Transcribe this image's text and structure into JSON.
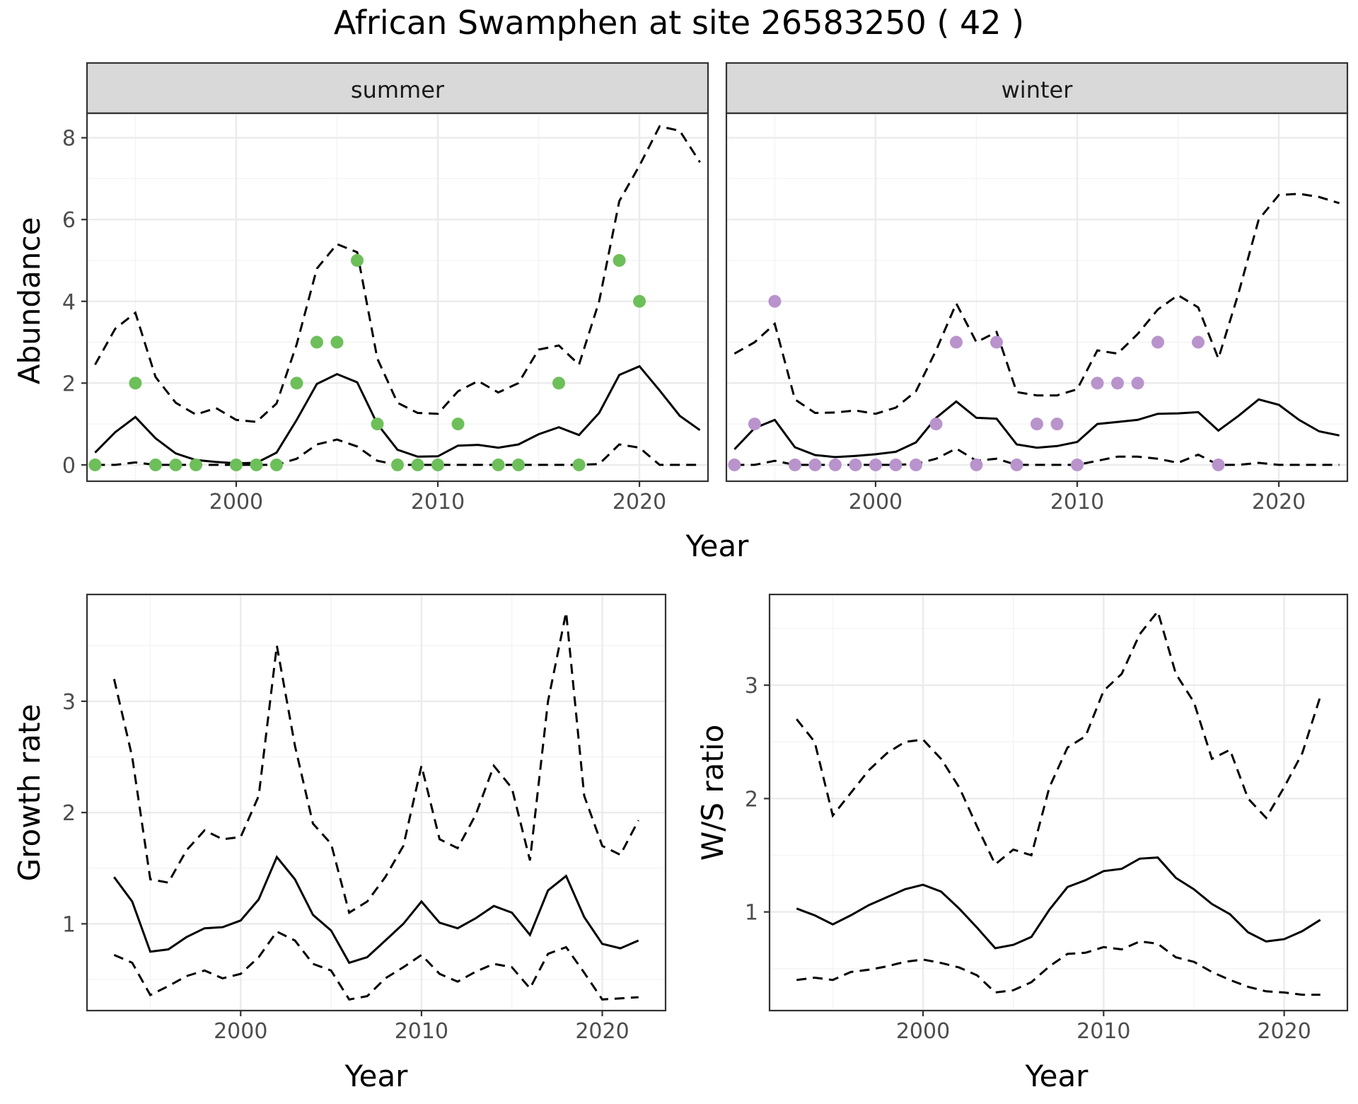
{
  "title": "African Swamphen at site 26583250 ( 42 )",
  "colors": {
    "summer_points": "#6dbf5a",
    "winter_points": "#b993cc",
    "lines": "#000000",
    "strip_fill": "#d9d9d9"
  },
  "chart_data": [
    {
      "id": "abundance-summer",
      "type": "line",
      "facet": "summer",
      "xlabel": "Year",
      "ylabel": "Abundance",
      "xlim": [
        1992.6,
        2023.4
      ],
      "ylim": [
        -0.4,
        8.6
      ],
      "xticks": [
        2000,
        2010,
        2020
      ],
      "xtick_labels": [
        "2000",
        "2010",
        "2020"
      ],
      "yticks": [
        0,
        2,
        4,
        6,
        8
      ],
      "ytick_labels": [
        "0",
        "2",
        "4",
        "6",
        "8"
      ],
      "grid": true,
      "x": [
        1993,
        1994,
        1995,
        1996,
        1997,
        1998,
        1999,
        2000,
        2001,
        2002,
        2003,
        2004,
        2005,
        2006,
        2007,
        2008,
        2009,
        2010,
        2011,
        2012,
        2013,
        2014,
        2015,
        2016,
        2017,
        2018,
        2019,
        2020,
        2021,
        2022,
        2023
      ],
      "series": [
        {
          "role": "estimate",
          "values": [
            0.3,
            0.8,
            1.17,
            0.65,
            0.28,
            0.12,
            0.07,
            0.04,
            0.05,
            0.3,
            1.1,
            1.98,
            2.22,
            2.02,
            1.0,
            0.37,
            0.2,
            0.21,
            0.47,
            0.49,
            0.42,
            0.5,
            0.75,
            0.92,
            0.73,
            1.27,
            2.2,
            2.41,
            1.82,
            1.2,
            0.85
          ]
        },
        {
          "role": "upper",
          "values": [
            2.45,
            3.33,
            3.72,
            2.15,
            1.52,
            1.23,
            1.39,
            1.1,
            1.05,
            1.5,
            2.95,
            4.8,
            5.4,
            5.2,
            2.6,
            1.52,
            1.27,
            1.25,
            1.8,
            2.05,
            1.77,
            2.0,
            2.82,
            2.92,
            2.45,
            4.0,
            6.45,
            7.32,
            8.28,
            8.17,
            7.4
          ]
        },
        {
          "role": "lower",
          "values": [
            0,
            0,
            0.06,
            0,
            0,
            0,
            0,
            0,
            0,
            0,
            0.15,
            0.5,
            0.62,
            0.45,
            0.1,
            0,
            0,
            0,
            0,
            0,
            0,
            0,
            0,
            0,
            0,
            0.02,
            0.5,
            0.42,
            0,
            0,
            0
          ]
        }
      ],
      "points": {
        "x": [
          1993,
          1995,
          1996,
          1997,
          1998,
          2000,
          2001,
          2002,
          2003,
          2004,
          2005,
          2006,
          2007,
          2008,
          2009,
          2010,
          2011,
          2013,
          2014,
          2016,
          2017,
          2019,
          2020
        ],
        "y": [
          0,
          2,
          0,
          0,
          0,
          0,
          0,
          0,
          2,
          3,
          3,
          5,
          1,
          0,
          0,
          0,
          1,
          0,
          0,
          2,
          0,
          5,
          4
        ]
      }
    },
    {
      "id": "abundance-winter",
      "type": "line",
      "facet": "winter",
      "xlabel": "Year",
      "ylabel": "Abundance",
      "xlim": [
        1992.6,
        2023.4
      ],
      "ylim": [
        -0.4,
        8.6
      ],
      "xticks": [
        2000,
        2010,
        2020
      ],
      "xtick_labels": [
        "2000",
        "2010",
        "2020"
      ],
      "yticks": [
        0,
        2,
        4,
        6,
        8
      ],
      "ytick_labels": [
        "0",
        "2",
        "4",
        "6",
        "8"
      ],
      "grid": true,
      "x": [
        1993,
        1994,
        1995,
        1996,
        1997,
        1998,
        1999,
        2000,
        2001,
        2002,
        2003,
        2004,
        2005,
        2006,
        2007,
        2008,
        2009,
        2010,
        2011,
        2012,
        2013,
        2014,
        2015,
        2016,
        2017,
        2018,
        2019,
        2020,
        2021,
        2022,
        2023
      ],
      "series": [
        {
          "role": "estimate",
          "values": [
            0.38,
            0.9,
            1.1,
            0.43,
            0.24,
            0.19,
            0.22,
            0.26,
            0.32,
            0.55,
            1.15,
            1.55,
            1.15,
            1.13,
            0.5,
            0.42,
            0.46,
            0.56,
            1.0,
            1.05,
            1.1,
            1.25,
            1.26,
            1.29,
            0.84,
            1.2,
            1.6,
            1.47,
            1.1,
            0.82,
            0.72
          ]
        },
        {
          "role": "upper",
          "values": [
            2.72,
            3.0,
            3.45,
            1.6,
            1.27,
            1.28,
            1.33,
            1.25,
            1.4,
            1.8,
            2.8,
            3.95,
            3.0,
            3.25,
            1.78,
            1.7,
            1.7,
            1.85,
            2.8,
            2.72,
            3.2,
            3.8,
            4.15,
            3.85,
            2.6,
            4.2,
            6.0,
            6.6,
            6.63,
            6.55,
            6.4
          ]
        },
        {
          "role": "lower",
          "values": [
            0,
            0,
            0.1,
            0,
            0,
            0,
            0,
            0,
            0,
            0.02,
            0.15,
            0.4,
            0.1,
            0.15,
            0,
            0,
            0,
            0,
            0.1,
            0.2,
            0.2,
            0.15,
            0.05,
            0.25,
            0,
            0,
            0.05,
            0,
            0,
            0,
            0
          ]
        }
      ],
      "points": {
        "x": [
          1993,
          1994,
          1995,
          1996,
          1997,
          1998,
          1999,
          2000,
          2001,
          2002,
          2003,
          2004,
          2005,
          2006,
          2007,
          2008,
          2009,
          2010,
          2011,
          2012,
          2013,
          2014,
          2016,
          2017
        ],
        "y": [
          0,
          1,
          4,
          0,
          0,
          0,
          0,
          0,
          0,
          0,
          1,
          3,
          0,
          3,
          0,
          1,
          1,
          0,
          2,
          2,
          2,
          3,
          3,
          0
        ]
      }
    },
    {
      "id": "growth-rate",
      "type": "line",
      "xlabel": "Year",
      "ylabel": "Growth rate",
      "xlim": [
        1991.5,
        2023.5
      ],
      "ylim": [
        0.22,
        3.96
      ],
      "xticks": [
        2000,
        2010,
        2020
      ],
      "xtick_labels": [
        "2000",
        "2010",
        "2020"
      ],
      "yticks": [
        1,
        2,
        3
      ],
      "ytick_labels": [
        "1",
        "2",
        "3"
      ],
      "grid": true,
      "x": [
        1993,
        1994,
        1995,
        1996,
        1997,
        1998,
        1999,
        2000,
        2001,
        2002,
        2003,
        2004,
        2005,
        2006,
        2007,
        2008,
        2009,
        2010,
        2011,
        2012,
        2013,
        2014,
        2015,
        2016,
        2017,
        2018,
        2019,
        2020,
        2021,
        2022
      ],
      "series": [
        {
          "role": "estimate",
          "values": [
            1.42,
            1.2,
            0.75,
            0.77,
            0.88,
            0.96,
            0.97,
            1.03,
            1.22,
            1.6,
            1.4,
            1.08,
            0.94,
            0.65,
            0.7,
            0.85,
            1.0,
            1.2,
            1.01,
            0.96,
            1.05,
            1.16,
            1.1,
            0.9,
            1.3,
            1.43,
            1.06,
            0.82,
            0.78,
            0.85
          ]
        },
        {
          "role": "upper",
          "values": [
            3.2,
            2.5,
            1.4,
            1.37,
            1.66,
            1.84,
            1.76,
            1.78,
            2.15,
            3.5,
            2.6,
            1.9,
            1.72,
            1.1,
            1.2,
            1.42,
            1.7,
            2.42,
            1.76,
            1.68,
            1.98,
            2.42,
            2.22,
            1.57,
            3.0,
            3.8,
            2.15,
            1.7,
            1.62,
            1.93
          ]
        },
        {
          "role": "lower",
          "values": [
            0.72,
            0.65,
            0.36,
            0.44,
            0.53,
            0.58,
            0.51,
            0.55,
            0.7,
            0.93,
            0.85,
            0.64,
            0.58,
            0.32,
            0.35,
            0.51,
            0.61,
            0.72,
            0.55,
            0.48,
            0.57,
            0.64,
            0.61,
            0.42,
            0.73,
            0.79,
            0.56,
            0.32,
            0.33,
            0.34
          ]
        }
      ]
    },
    {
      "id": "ws-ratio",
      "type": "line",
      "xlabel": "Year",
      "ylabel": "W/S ratio",
      "xlim": [
        1991.5,
        2023.5
      ],
      "ylim": [
        0.13,
        3.8
      ],
      "xticks": [
        2000,
        2010,
        2020
      ],
      "xtick_labels": [
        "2000",
        "2010",
        "2020"
      ],
      "yticks": [
        1,
        2,
        3
      ],
      "ytick_labels": [
        "1",
        "2",
        "3"
      ],
      "grid": true,
      "x": [
        1993,
        1994,
        1995,
        1996,
        1997,
        1998,
        1999,
        2000,
        2001,
        2002,
        2003,
        2004,
        2005,
        2006,
        2007,
        2008,
        2009,
        2010,
        2011,
        2012,
        2013,
        2014,
        2015,
        2016,
        2017,
        2018,
        2019,
        2020,
        2021,
        2022
      ],
      "series": [
        {
          "role": "estimate",
          "values": [
            1.03,
            0.97,
            0.89,
            0.97,
            1.06,
            1.13,
            1.2,
            1.24,
            1.18,
            1.03,
            0.86,
            0.68,
            0.71,
            0.78,
            1.02,
            1.22,
            1.28,
            1.36,
            1.38,
            1.47,
            1.48,
            1.3,
            1.2,
            1.07,
            0.98,
            0.82,
            0.74,
            0.76,
            0.83,
            0.93
          ]
        },
        {
          "role": "upper",
          "values": [
            2.7,
            2.5,
            1.85,
            2.05,
            2.25,
            2.4,
            2.5,
            2.52,
            2.35,
            2.1,
            1.75,
            1.42,
            1.55,
            1.5,
            2.1,
            2.45,
            2.55,
            2.95,
            3.1,
            3.45,
            3.65,
            3.1,
            2.85,
            2.35,
            2.43,
            2.0,
            1.83,
            2.1,
            2.4,
            2.9
          ]
        },
        {
          "role": "lower",
          "values": [
            0.4,
            0.42,
            0.4,
            0.47,
            0.49,
            0.52,
            0.56,
            0.58,
            0.55,
            0.51,
            0.44,
            0.29,
            0.31,
            0.38,
            0.52,
            0.63,
            0.64,
            0.69,
            0.67,
            0.74,
            0.72,
            0.6,
            0.56,
            0.47,
            0.4,
            0.34,
            0.3,
            0.29,
            0.27,
            0.27
          ]
        }
      ]
    }
  ]
}
